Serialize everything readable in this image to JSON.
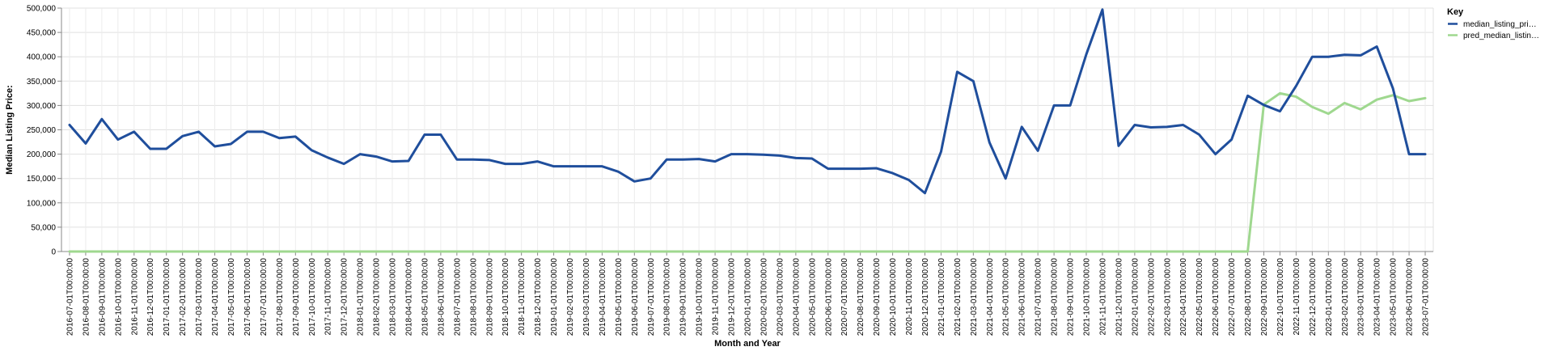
{
  "chart_data": {
    "type": "line",
    "xlabel": "Month and Year",
    "ylabel": "Median Listing Price:",
    "ylim": [
      0,
      500000
    ],
    "yticks": [
      "0",
      "50,000",
      "100,000",
      "150,000",
      "200,000",
      "250,000",
      "300,000",
      "350,000",
      "400,000",
      "450,000",
      "500,000"
    ],
    "grid": true,
    "legend": {
      "title": "Key",
      "placement": "right",
      "entries": [
        "median_listing_pri…",
        "pred_median_listin…"
      ]
    },
    "x": [
      "2016-07-01T00:00:00",
      "2016-08-01T00:00:00",
      "2016-09-01T00:00:00",
      "2016-10-01T00:00:00",
      "2016-11-01T00:00:00",
      "2016-12-01T00:00:00",
      "2017-01-01T00:00:00",
      "2017-02-01T00:00:00",
      "2017-03-01T00:00:00",
      "2017-04-01T00:00:00",
      "2017-05-01T00:00:00",
      "2017-06-01T00:00:00",
      "2017-07-01T00:00:00",
      "2017-08-01T00:00:00",
      "2017-09-01T00:00:00",
      "2017-10-01T00:00:00",
      "2017-11-01T00:00:00",
      "2017-12-01T00:00:00",
      "2018-01-01T00:00:00",
      "2018-02-01T00:00:00",
      "2018-03-01T00:00:00",
      "2018-04-01T00:00:00",
      "2018-05-01T00:00:00",
      "2018-06-01T00:00:00",
      "2018-07-01T00:00:00",
      "2018-08-01T00:00:00",
      "2018-09-01T00:00:00",
      "2018-10-01T00:00:00",
      "2018-11-01T00:00:00",
      "2018-12-01T00:00:00",
      "2019-01-01T00:00:00",
      "2019-02-01T00:00:00",
      "2019-03-01T00:00:00",
      "2019-04-01T00:00:00",
      "2019-05-01T00:00:00",
      "2019-06-01T00:00:00",
      "2019-07-01T00:00:00",
      "2019-08-01T00:00:00",
      "2019-09-01T00:00:00",
      "2019-10-01T00:00:00",
      "2019-11-01T00:00:00",
      "2019-12-01T00:00:00",
      "2020-01-01T00:00:00",
      "2020-02-01T00:00:00",
      "2020-03-01T00:00:00",
      "2020-04-01T00:00:00",
      "2020-05-01T00:00:00",
      "2020-06-01T00:00:00",
      "2020-07-01T00:00:00",
      "2020-08-01T00:00:00",
      "2020-09-01T00:00:00",
      "2020-10-01T00:00:00",
      "2020-11-01T00:00:00",
      "2020-12-01T00:00:00",
      "2021-01-01T00:00:00",
      "2021-02-01T00:00:00",
      "2021-03-01T00:00:00",
      "2021-04-01T00:00:00",
      "2021-05-01T00:00:00",
      "2021-06-01T00:00:00",
      "2021-07-01T00:00:00",
      "2021-08-01T00:00:00",
      "2021-09-01T00:00:00",
      "2021-10-01T00:00:00",
      "2021-11-01T00:00:00",
      "2021-12-01T00:00:00",
      "2022-01-01T00:00:00",
      "2022-02-01T00:00:00",
      "2022-03-01T00:00:00",
      "2022-04-01T00:00:00",
      "2022-05-01T00:00:00",
      "2022-06-01T00:00:00",
      "2022-07-01T00:00:00",
      "2022-08-01T00:00:00",
      "2022-09-01T00:00:00",
      "2022-10-01T00:00:00",
      "2022-11-01T00:00:00",
      "2022-12-01T00:00:00",
      "2023-01-01T00:00:00",
      "2023-02-01T00:00:00",
      "2023-03-01T00:00:00",
      "2023-04-01T00:00:00",
      "2023-05-01T00:00:00",
      "2023-06-01T00:00:00",
      "2023-07-01T00:00:00"
    ],
    "series": [
      {
        "name": "median_listing_pri…",
        "color": "#1f4e9c",
        "values": [
          260000,
          222000,
          272000,
          230000,
          246000,
          211000,
          211000,
          237000,
          246000,
          216000,
          221000,
          246000,
          246000,
          233000,
          236000,
          208000,
          193000,
          180000,
          200000,
          195000,
          185000,
          186000,
          240000,
          240000,
          189000,
          189000,
          188000,
          180000,
          180000,
          185000,
          175000,
          175000,
          175000,
          175000,
          164000,
          144000,
          150000,
          189000,
          189000,
          190000,
          185000,
          200000,
          200000,
          199000,
          197000,
          192000,
          191000,
          170000,
          170000,
          170000,
          171000,
          161000,
          147000,
          120000,
          205000,
          369000,
          350000,
          224000,
          150000,
          256000,
          207000,
          300000,
          300000,
          405000,
          497000,
          217000,
          260000,
          255000,
          256000,
          260000,
          240000,
          200000,
          230000,
          320000,
          301000,
          288000,
          340000,
          400000,
          400000,
          404000,
          403000,
          421000,
          335000,
          200000,
          200000
        ]
      },
      {
        "name": "pred_median_listin…",
        "color": "#9fd88f",
        "values": [
          0,
          0,
          0,
          0,
          0,
          0,
          0,
          0,
          0,
          0,
          0,
          0,
          0,
          0,
          0,
          0,
          0,
          0,
          0,
          0,
          0,
          0,
          0,
          0,
          0,
          0,
          0,
          0,
          0,
          0,
          0,
          0,
          0,
          0,
          0,
          0,
          0,
          0,
          0,
          0,
          0,
          0,
          0,
          0,
          0,
          0,
          0,
          0,
          0,
          0,
          0,
          0,
          0,
          0,
          0,
          0,
          0,
          0,
          0,
          0,
          0,
          0,
          0,
          0,
          0,
          0,
          0,
          0,
          0,
          0,
          0,
          0,
          0,
          0,
          302000,
          325000,
          318000,
          297000,
          283000,
          305000,
          292000,
          312000,
          321000,
          309000,
          315000
        ]
      }
    ]
  }
}
